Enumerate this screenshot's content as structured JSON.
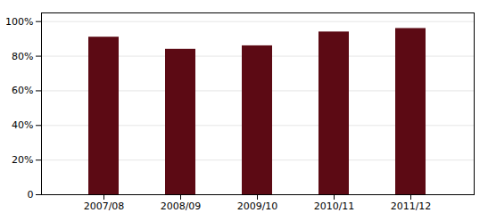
{
  "chart_data": {
    "type": "bar",
    "categories": [
      "2007/08",
      "2008/09",
      "2009/10",
      "2010/11",
      "2011/12"
    ],
    "values": [
      0.91,
      0.84,
      0.86,
      0.94,
      0.96
    ],
    "color": "#5C0A14",
    "ylim": [
      0,
      1.05
    ],
    "yticks": [
      0,
      {
        "value": 0.2,
        "label": "20%"
      },
      {
        "value": 0.4,
        "label": "40%"
      },
      {
        "value": 0.6,
        "label": "60%"
      },
      {
        "value": 0.8,
        "label": "80%"
      },
      {
        "value": 1.0,
        "label": "100%"
      }
    ],
    "grid": true
  }
}
